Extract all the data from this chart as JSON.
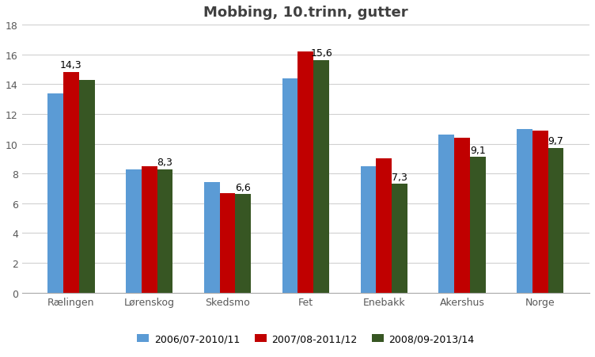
{
  "title": "Mobbing, 10.trinn, gutter",
  "title_color": "#404040",
  "categories": [
    "Rælingen",
    "Lørenskog",
    "Skedsmo",
    "Fet",
    "Enebakk",
    "Akershus",
    "Norge"
  ],
  "series": [
    {
      "label": "2006/07-2010/11",
      "color": "#5B9BD5",
      "values": [
        13.4,
        8.3,
        7.4,
        14.4,
        8.5,
        10.6,
        11.0
      ]
    },
    {
      "label": "2007/08-2011/12",
      "color": "#C00000",
      "values": [
        14.8,
        8.5,
        6.7,
        16.2,
        9.0,
        10.4,
        10.9
      ]
    },
    {
      "label": "2008/09-2013/14",
      "color": "#375623",
      "values": [
        14.3,
        8.3,
        6.6,
        15.6,
        7.3,
        9.1,
        9.7
      ]
    }
  ],
  "annotations": {
    "Rælingen": [
      null,
      "14,3",
      null
    ],
    "Lørenskog": [
      null,
      null,
      "8,3"
    ],
    "Skedsmo": [
      null,
      null,
      "6,6"
    ],
    "Fet": [
      null,
      null,
      "15,6"
    ],
    "Enebakk": [
      null,
      null,
      "7,3"
    ],
    "Akershus": [
      null,
      null,
      "9,1"
    ],
    "Norge": [
      null,
      null,
      "9,7"
    ]
  },
  "ylim": [
    0,
    18
  ],
  "yticks": [
    0,
    2,
    4,
    6,
    8,
    10,
    12,
    14,
    16,
    18
  ],
  "bar_width": 0.2,
  "background_color": "#FFFFFF",
  "title_fontsize": 13,
  "axis_fontsize": 9,
  "annotation_fontsize": 9,
  "tick_label_color": "#595959"
}
